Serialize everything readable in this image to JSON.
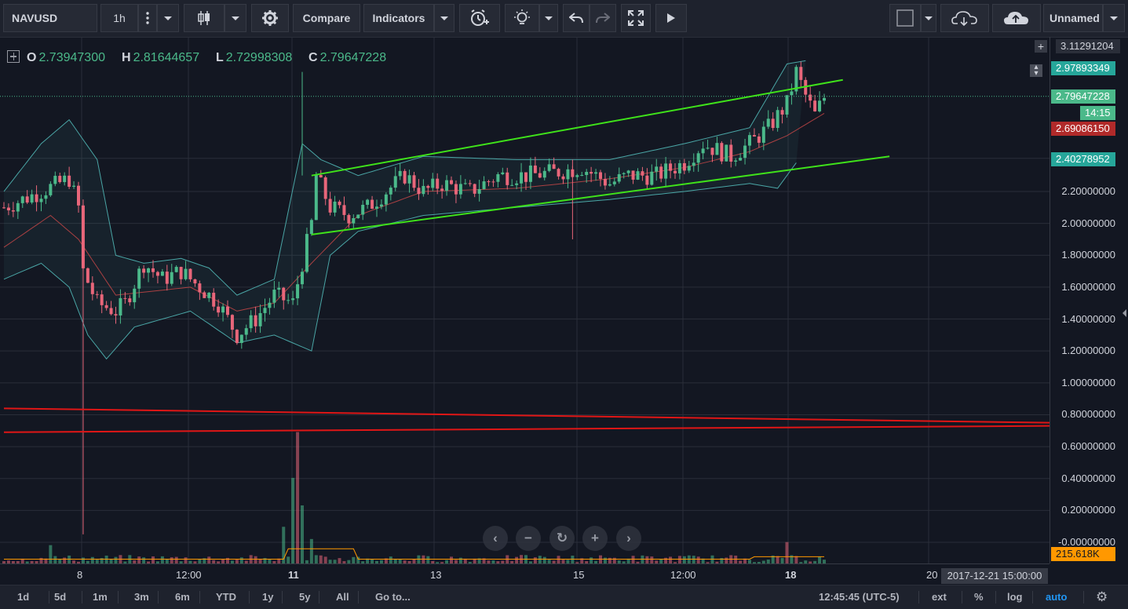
{
  "toolbar": {
    "symbol": "NAVUSD",
    "interval": "1h",
    "compare_label": "Compare",
    "indicators_label": "Indicators",
    "layout_name": "Unnamed",
    "icons": [
      "more-vert-icon",
      "candles-icon",
      "gear-icon",
      "alarm-add-icon",
      "lightbulb-icon",
      "undo-icon",
      "redo-icon",
      "fullscreen-icon",
      "play-icon",
      "square-icon",
      "cloud-download-icon",
      "cloud-upload-icon"
    ]
  },
  "legend": {
    "open_key": "O",
    "open": "2.73947300",
    "high_key": "H",
    "high": "2.81644657",
    "low_key": "L",
    "low": "2.72998308",
    "close_key": "C",
    "close": "2.79647228"
  },
  "price_axis": {
    "ticks": [
      "3.11291204",
      "2.97893349",
      "2.79647228",
      "14:15",
      "2.69086150",
      "2.40278952",
      "2.20000000",
      "2.00000000",
      "1.80000000",
      "1.60000000",
      "1.40000000",
      "1.20000000",
      "1.00000000",
      "0.80000000",
      "0.60000000",
      "0.40000000",
      "0.20000000",
      "-0.00000000",
      "215.618K"
    ],
    "badges": {
      "top": "3.11291204",
      "high": "2.97893349",
      "last": "2.79647228",
      "countdown": "14:15",
      "ma": "2.69086150",
      "bb": "2.40278952",
      "volume": "215.618K"
    },
    "labels": [
      "2.20000000",
      "2.00000000",
      "1.80000000",
      "1.60000000",
      "1.40000000",
      "1.20000000",
      "1.00000000",
      "0.80000000",
      "0.60000000",
      "0.40000000",
      "0.20000000",
      "-0.00000000"
    ]
  },
  "time_axis": {
    "labels": [
      "8",
      "12:00",
      "11",
      "13",
      "15",
      "12:00",
      "18",
      "20"
    ],
    "crosshair_label": "2017-12-21 15:00:00"
  },
  "bottom": {
    "ranges": [
      "1d",
      "5d",
      "1m",
      "3m",
      "6m",
      "YTD",
      "1y",
      "5y",
      "All"
    ],
    "goto_label": "Go to...",
    "clock": "12:45:45 (UTC-5)",
    "ext_label": "ext",
    "percent_label": "%",
    "log_label": "log",
    "auto_label": "auto"
  },
  "colors": {
    "background": "#131722",
    "up": "#4bb98a",
    "down": "#e8667a",
    "trendline_green": "#3fe21a",
    "trendline_red": "#e01616",
    "bollinger": "#4aa6a6",
    "ma": "#d04848"
  },
  "chart_data": {
    "type": "candlestick",
    "symbol": "NAVUSD",
    "interval": "1h",
    "xlabel": "",
    "ylabel": "",
    "ylim": [
      -0.05,
      3.12
    ],
    "x_ticks": [
      "8",
      "12:00",
      "11",
      "13",
      "15",
      "12:00",
      "18",
      "20"
    ],
    "y_ticks": [
      2.2,
      2.0,
      1.8,
      1.6,
      1.4,
      1.2,
      1.0,
      0.8,
      0.6,
      0.4,
      0.2,
      0.0
    ],
    "close_path": [
      [
        0,
        2.1
      ],
      [
        8,
        2.2
      ],
      [
        14,
        2.28
      ],
      [
        16,
        2.1
      ],
      [
        17,
        1.7
      ],
      [
        20,
        1.5
      ],
      [
        24,
        1.45
      ],
      [
        26,
        1.5
      ],
      [
        30,
        1.75
      ],
      [
        34,
        1.65
      ],
      [
        38,
        1.7
      ],
      [
        42,
        1.6
      ],
      [
        46,
        1.5
      ],
      [
        50,
        1.3
      ],
      [
        54,
        1.4
      ],
      [
        58,
        1.55
      ],
      [
        62,
        1.5
      ],
      [
        64,
        1.75
      ],
      [
        66,
        2.0
      ],
      [
        67,
        2.3
      ],
      [
        70,
        2.1
      ],
      [
        74,
        2.05
      ],
      [
        78,
        2.1
      ],
      [
        82,
        2.2
      ],
      [
        86,
        2.3
      ],
      [
        90,
        2.2
      ],
      [
        94,
        2.25
      ],
      [
        100,
        2.2
      ],
      [
        106,
        2.3
      ],
      [
        112,
        2.3
      ],
      [
        118,
        2.32
      ],
      [
        124,
        2.35
      ],
      [
        130,
        2.25
      ],
      [
        134,
        2.3
      ],
      [
        140,
        2.3
      ],
      [
        146,
        2.38
      ],
      [
        150,
        2.5
      ],
      [
        156,
        2.42
      ],
      [
        160,
        2.5
      ],
      [
        164,
        2.6
      ],
      [
        168,
        2.75
      ],
      [
        170,
        2.95
      ],
      [
        172,
        2.8
      ],
      [
        174,
        2.68
      ],
      [
        176,
        2.79
      ]
    ],
    "upper_band_path": [
      [
        0,
        2.2
      ],
      [
        8,
        2.5
      ],
      [
        14,
        2.65
      ],
      [
        20,
        2.4
      ],
      [
        24,
        1.8
      ],
      [
        30,
        1.75
      ],
      [
        38,
        1.78
      ],
      [
        44,
        1.72
      ],
      [
        50,
        1.55
      ],
      [
        58,
        1.65
      ],
      [
        64,
        2.5
      ],
      [
        68,
        2.4
      ],
      [
        76,
        2.3
      ],
      [
        90,
        2.42
      ],
      [
        110,
        2.4
      ],
      [
        130,
        2.4
      ],
      [
        146,
        2.5
      ],
      [
        160,
        2.6
      ],
      [
        168,
        3.0
      ],
      [
        172,
        3.02
      ]
    ],
    "lower_band_path": [
      [
        0,
        1.65
      ],
      [
        8,
        1.75
      ],
      [
        14,
        1.6
      ],
      [
        18,
        1.3
      ],
      [
        22,
        1.15
      ],
      [
        28,
        1.35
      ],
      [
        40,
        1.45
      ],
      [
        50,
        1.25
      ],
      [
        58,
        1.3
      ],
      [
        66,
        1.2
      ],
      [
        70,
        1.8
      ],
      [
        76,
        1.95
      ],
      [
        90,
        2.05
      ],
      [
        110,
        2.1
      ],
      [
        130,
        2.15
      ],
      [
        146,
        2.2
      ],
      [
        160,
        2.25
      ],
      [
        166,
        2.22
      ],
      [
        170,
        2.38
      ]
    ],
    "ma_path": [
      [
        0,
        1.85
      ],
      [
        10,
        2.05
      ],
      [
        16,
        1.9
      ],
      [
        24,
        1.55
      ],
      [
        40,
        1.6
      ],
      [
        50,
        1.45
      ],
      [
        58,
        1.5
      ],
      [
        66,
        1.75
      ],
      [
        76,
        2.05
      ],
      [
        90,
        2.2
      ],
      [
        110,
        2.22
      ],
      [
        130,
        2.28
      ],
      [
        146,
        2.35
      ],
      [
        160,
        2.45
      ],
      [
        168,
        2.55
      ],
      [
        172,
        2.62
      ],
      [
        176,
        2.69
      ]
    ],
    "volume_scale_max": 215.618,
    "volume_spikes": [
      [
        10,
        30
      ],
      [
        60,
        60
      ],
      [
        62,
        140
      ],
      [
        63,
        215
      ],
      [
        64,
        95
      ],
      [
        66,
        40
      ],
      [
        168,
        35
      ]
    ],
    "last_price": 2.79647228,
    "drawings": {
      "green_channel_upper": [
        [
          66,
          2.3
        ],
        [
          180,
          2.9
        ]
      ],
      "green_channel_lower": [
        [
          66,
          1.93
        ],
        [
          190,
          2.42
        ]
      ],
      "red_line_1": [
        [
          0,
          0.84
        ],
        [
          200,
          0.75
        ]
      ],
      "red_line_2": [
        [
          0,
          0.69
        ],
        [
          200,
          0.73
        ]
      ]
    }
  }
}
